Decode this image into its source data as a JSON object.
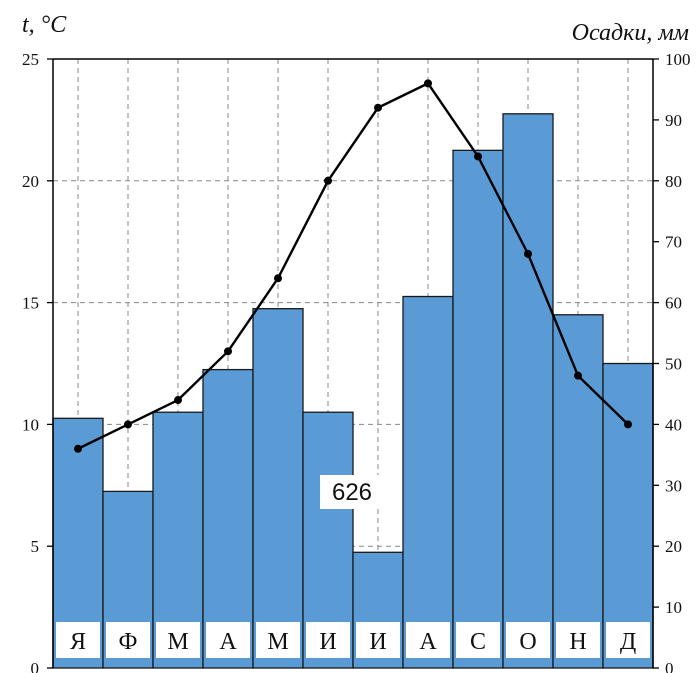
{
  "chart_data": {
    "type": "bar",
    "title": "",
    "categories": [
      "Я",
      "Ф",
      "М",
      "А",
      "М",
      "И",
      "И",
      "А",
      "С",
      "О",
      "Н",
      "Д"
    ],
    "left_axis": {
      "label": "t, °C",
      "min": 0,
      "max": 25,
      "ticks": [
        0,
        5,
        10,
        15,
        20,
        25
      ]
    },
    "right_axis": {
      "label": "Осадки, мм",
      "min": 0,
      "max": 100,
      "ticks": [
        0,
        10,
        20,
        30,
        40,
        50,
        60,
        70,
        80,
        90,
        100
      ]
    },
    "series": [
      {
        "kind": "bar",
        "axis": "right",
        "values": [
          41,
          29,
          42,
          49,
          59,
          42,
          19,
          61,
          85,
          91,
          58,
          50
        ]
      },
      {
        "kind": "line",
        "axis": "left",
        "values": [
          9,
          10,
          11,
          13,
          16,
          20,
          23,
          24,
          21,
          17,
          12,
          10
        ]
      }
    ],
    "annotation": "626",
    "grid": true,
    "colors": {
      "bar": "#5b9bd5",
      "bar_edge": "#1a1a1a",
      "line": "#000000",
      "grid": "#888888"
    }
  }
}
